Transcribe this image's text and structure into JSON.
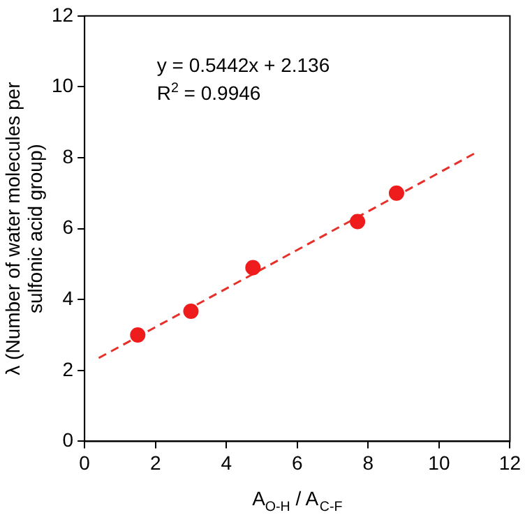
{
  "chart_data": {
    "type": "scatter",
    "xlabel": "A$_{O-H}$ / A$_{C-F}$",
    "ylabel": "λ (Number of water molecules per sulfonic acid group)",
    "annotations": [
      "y = 0.5442x + 2.136",
      "R$^{2}$ = 0.9946"
    ],
    "series": [
      {
        "type": "scatter",
        "color": "#ee1c1c",
        "x": [
          1.5,
          3.0,
          4.75,
          7.7,
          8.8
        ],
        "values": [
          3.0,
          3.67,
          4.9,
          6.2,
          7.0
        ],
        "marker": "circle"
      },
      {
        "type": "line",
        "color": "#e8302a",
        "x": [
          0.4,
          11
        ],
        "values": [
          2.35,
          8.12
        ],
        "line_style": "dashed",
        "marker": "none"
      }
    ],
    "xlim": [
      0,
      12
    ],
    "xticks": [
      0,
      2,
      4,
      6,
      8,
      10,
      12
    ],
    "ylim": [
      0,
      12
    ],
    "yticks": [
      0,
      2,
      4,
      6,
      8,
      10,
      12
    ],
    "grid": false,
    "legend": false
  }
}
